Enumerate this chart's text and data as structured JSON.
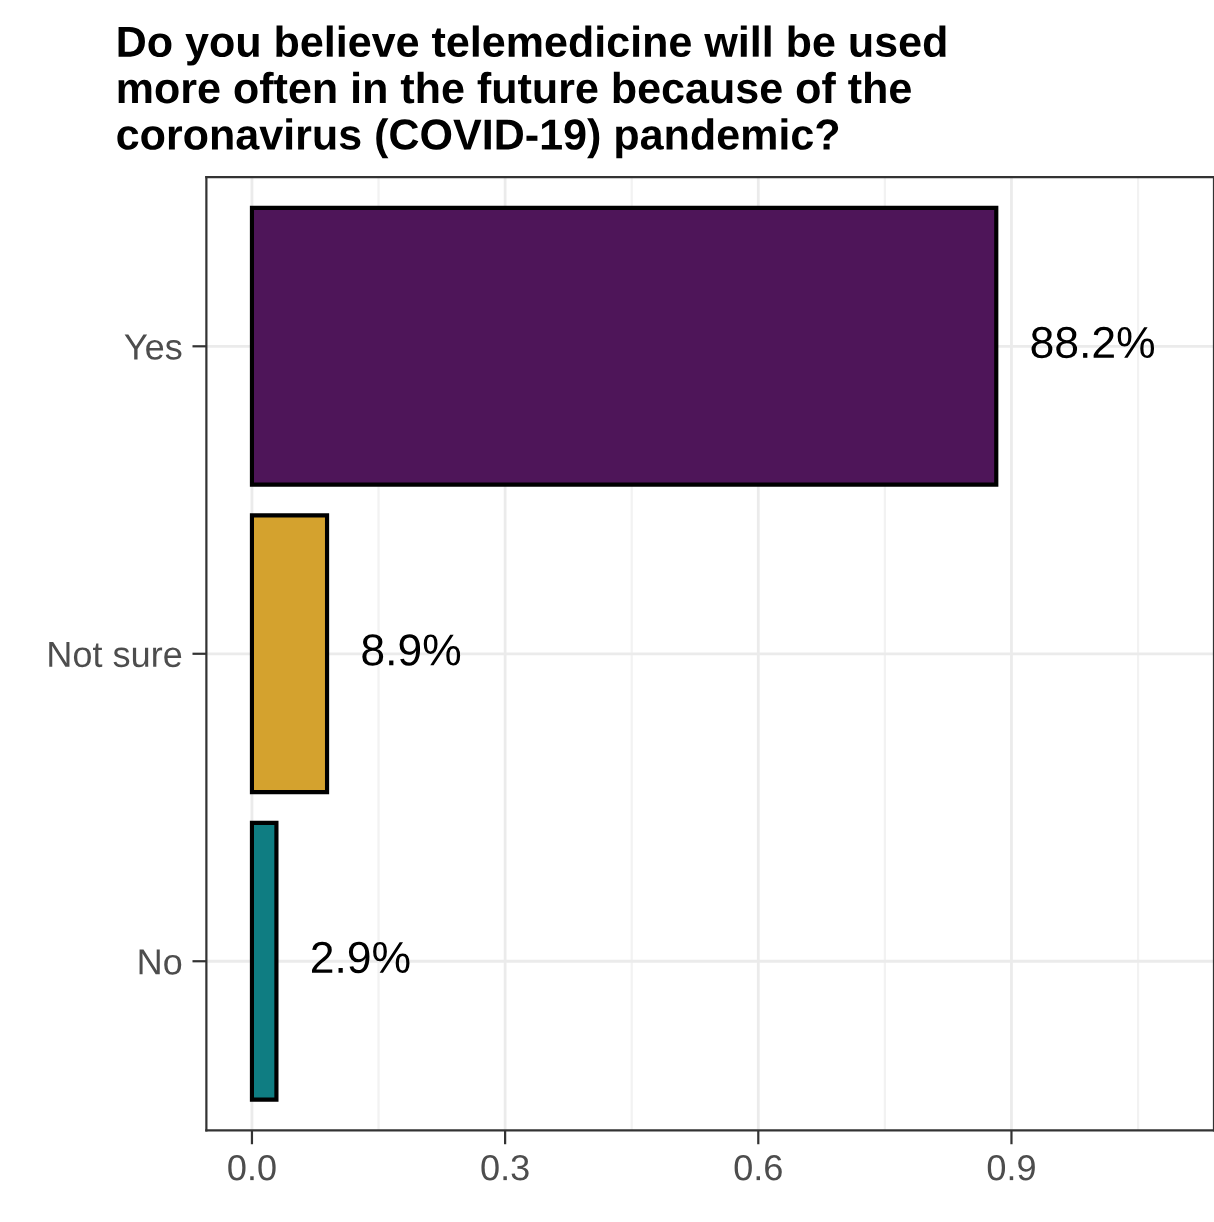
{
  "chart_data": {
    "type": "bar",
    "orientation": "horizontal",
    "title": "Do you believe telemedicine will be used\nmore often in the future because of the\ncoronavirus (COVID-19) pandemic?",
    "categories": [
      "Yes",
      "Not sure",
      "No"
    ],
    "values": [
      0.882,
      0.089,
      0.029
    ],
    "colors": [
      "#4e1559",
      "#d4a22e",
      "#0f7d82"
    ],
    "value_labels": [
      "88.2%",
      "8.9%",
      "2.9%"
    ],
    "xlim": [
      -0.054,
      1.14
    ],
    "xticks": [
      {
        "value": 0.0,
        "label": "0.0"
      },
      0.3,
      0.6,
      0.9
    ],
    "grid": true
  }
}
